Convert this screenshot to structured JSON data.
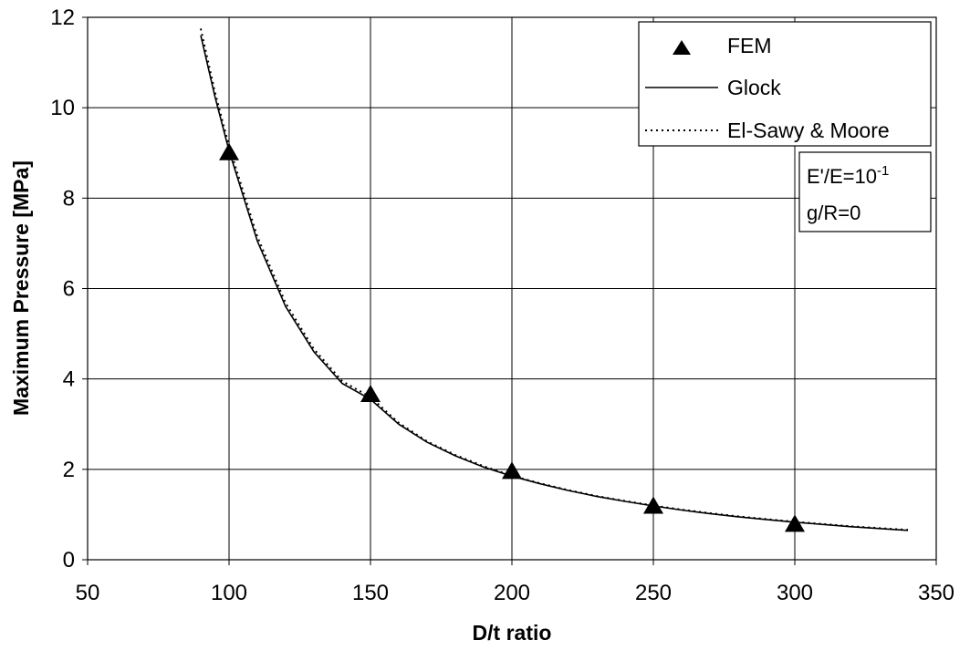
{
  "chart_data": {
    "type": "scatter",
    "title": "",
    "xlabel": "D/t ratio",
    "ylabel": "Maximum Pressure [MPa]",
    "xlim": [
      50,
      350
    ],
    "ylim": [
      0,
      12
    ],
    "xticks": [
      50,
      100,
      150,
      200,
      250,
      300,
      350
    ],
    "yticks": [
      0,
      2,
      4,
      6,
      8,
      10,
      12
    ],
    "grid": true,
    "legend_position": "top-right",
    "series": [
      {
        "name": "FEM",
        "style": "triangle-markers",
        "color": "#000000",
        "x": [
          100,
          150,
          200,
          250,
          300
        ],
        "y": [
          9.0,
          3.65,
          1.95,
          1.18,
          0.78
        ]
      },
      {
        "name": "Glock",
        "style": "solid-line",
        "color": "#000000",
        "x": [
          90,
          95,
          100,
          110,
          120,
          130,
          140,
          150,
          160,
          170,
          180,
          190,
          200,
          210,
          220,
          230,
          240,
          250,
          260,
          270,
          280,
          290,
          300,
          310,
          320,
          330,
          340
        ],
        "y": [
          11.6,
          10.25,
          9.05,
          7.05,
          5.6,
          4.6,
          3.9,
          3.55,
          3.0,
          2.6,
          2.3,
          2.05,
          1.85,
          1.68,
          1.53,
          1.4,
          1.29,
          1.19,
          1.1,
          1.02,
          0.95,
          0.89,
          0.83,
          0.78,
          0.73,
          0.69,
          0.65
        ]
      },
      {
        "name": "El-Sawy & Moore",
        "style": "dotted-line",
        "color": "#000000",
        "x": [
          90,
          95,
          100,
          110,
          120,
          130,
          140,
          150,
          160,
          170,
          180,
          190,
          200,
          210,
          220,
          230,
          240,
          250,
          260,
          270,
          280,
          290,
          300,
          310,
          320,
          330,
          340
        ],
        "y": [
          11.75,
          10.35,
          9.15,
          7.15,
          5.68,
          4.66,
          3.95,
          3.6,
          3.03,
          2.62,
          2.32,
          2.07,
          1.86,
          1.69,
          1.54,
          1.41,
          1.3,
          1.2,
          1.11,
          1.03,
          0.96,
          0.9,
          0.84,
          0.79,
          0.74,
          0.7,
          0.66
        ]
      }
    ],
    "annotation": {
      "line1_base": "E'/E=10",
      "line1_sup": "-1",
      "line2": "g/R=0"
    }
  }
}
